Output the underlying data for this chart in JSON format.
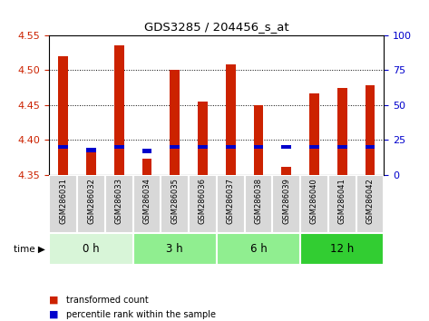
{
  "title": "GDS3285 / 204456_s_at",
  "samples": [
    "GSM286031",
    "GSM286032",
    "GSM286033",
    "GSM286034",
    "GSM286035",
    "GSM286036",
    "GSM286037",
    "GSM286038",
    "GSM286039",
    "GSM286040",
    "GSM286041",
    "GSM286042"
  ],
  "red_values": [
    4.52,
    4.384,
    4.535,
    4.373,
    4.5,
    4.455,
    4.508,
    4.45,
    4.362,
    4.467,
    4.475,
    4.478
  ],
  "blue_pct": [
    20,
    18,
    20,
    17,
    20,
    20,
    20,
    20,
    20,
    20,
    20,
    20
  ],
  "y_min": 4.35,
  "y_max": 4.55,
  "y_ticks": [
    4.35,
    4.4,
    4.45,
    4.5,
    4.55
  ],
  "right_y_ticks": [
    0,
    25,
    50,
    75,
    100
  ],
  "groups": [
    {
      "label": "0 h",
      "start": 0,
      "end": 3,
      "color": "#d8f5d8"
    },
    {
      "label": "3 h",
      "start": 3,
      "end": 6,
      "color": "#90ee90"
    },
    {
      "label": "6 h",
      "start": 6,
      "end": 9,
      "color": "#90ee90"
    },
    {
      "label": "12 h",
      "start": 9,
      "end": 12,
      "color": "#32cd32"
    }
  ],
  "bar_color": "#cc2200",
  "blue_color": "#0000cc",
  "bar_width": 0.35,
  "xtick_bg": "#d0d0d0",
  "left_axis_color": "#cc2200",
  "right_axis_color": "#0000cc"
}
